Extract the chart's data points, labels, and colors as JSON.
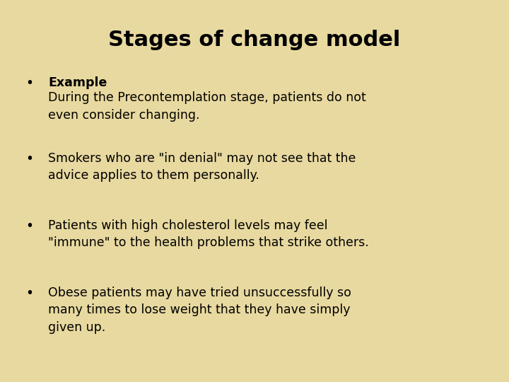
{
  "title": "Stages of change model",
  "background_color": "#E8D9A0",
  "title_fontsize": 22,
  "title_fontweight": "bold",
  "title_color": "#000000",
  "text_color": "#000000",
  "body_fontsize": 12.5,
  "bullet_items": [
    {
      "bold_part": "Example",
      "normal_part": "During the Precontemplation stage, patients do not\neven consider changing."
    },
    {
      "bold_part": "",
      "normal_part": "Smokers who are \"in denial\" may not see that the\nadvice applies to them personally."
    },
    {
      "bold_part": "",
      "normal_part": "Patients with high cholesterol levels may feel\n\"immune\" to the health problems that strike others."
    },
    {
      "bold_part": "",
      "normal_part": "Obese patients may have tried unsuccessfully so\nmany times to lose weight that they have simply\ngiven up."
    }
  ],
  "figsize": [
    7.2,
    5.4
  ],
  "dpi": 100
}
